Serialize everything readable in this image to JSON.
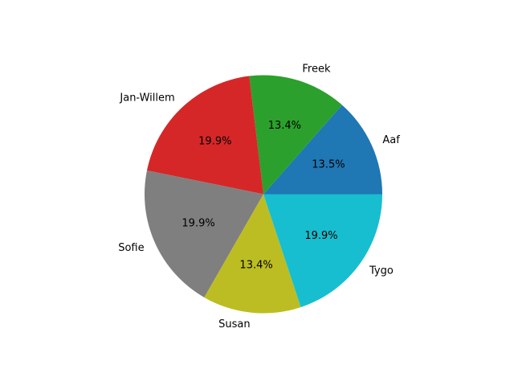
{
  "chart_data": {
    "type": "pie",
    "title": "",
    "start_angle_deg": 0,
    "direction": "counterclockwise",
    "slices": [
      {
        "label": "Aaf",
        "value": 13.5,
        "pct_label": "13.5%",
        "color": "#1f77b4"
      },
      {
        "label": "Freek",
        "value": 13.4,
        "pct_label": "13.4%",
        "color": "#2ca02c"
      },
      {
        "label": "Jan-Willem",
        "value": 19.9,
        "pct_label": "19.9%",
        "color": "#d62728"
      },
      {
        "label": "Sofie",
        "value": 19.9,
        "pct_label": "19.9%",
        "color": "#7f7f7f"
      },
      {
        "label": "Susan",
        "value": 13.4,
        "pct_label": "13.4%",
        "color": "#bcbd22"
      },
      {
        "label": "Tygo",
        "value": 19.9,
        "pct_label": "19.9%",
        "color": "#17becf"
      }
    ]
  }
}
